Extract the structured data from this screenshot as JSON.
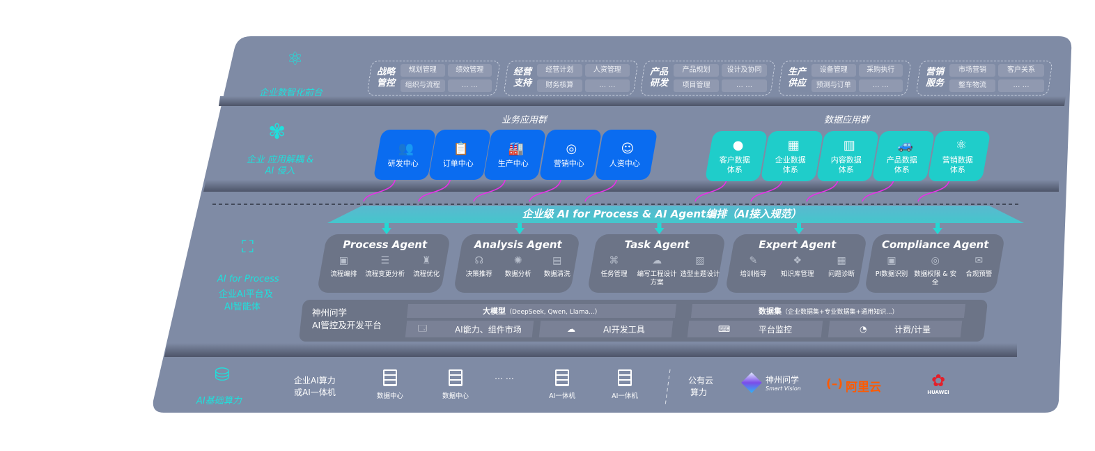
{
  "colors": {
    "panel": "#7f8ba5",
    "accent_teal": "#1fe0dc",
    "business_blue": "#0a6cf0",
    "data_teal": "#1fcdca",
    "arrow_magenta": "#e830e8"
  },
  "front": {
    "label": "企业数智化前台",
    "icon": "brain-icon",
    "groups": [
      {
        "title": "战略管控",
        "items": [
          "规划管理",
          "绩效管理",
          "组织与流程",
          "… …"
        ]
      },
      {
        "title": "经营支持",
        "items": [
          "经营计划",
          "人资管理",
          "财务核算",
          "… …"
        ]
      },
      {
        "title": "产品研发",
        "items": [
          "产品规划",
          "设计及协同",
          "项目管理",
          "… …"
        ]
      },
      {
        "title": "生产供应",
        "items": [
          "设备管理",
          "采购执行",
          "预测与订单",
          "… …"
        ]
      },
      {
        "title": "营销服务",
        "items": [
          "市场营销",
          "客户关系",
          "整车物流",
          "… …"
        ]
      }
    ]
  },
  "apps": {
    "label": "企业 应用解耦 & AI 侵入",
    "icon": "molecule-icon",
    "business": {
      "title": "业务应用群",
      "cards": [
        {
          "label": "研发中心",
          "icon": "team-icon"
        },
        {
          "label": "订单中心",
          "icon": "clipboard-icon"
        },
        {
          "label": "生产中心",
          "icon": "factory-icon"
        },
        {
          "label": "营销中心",
          "icon": "target-icon"
        },
        {
          "label": "人资中心",
          "icon": "person-icon"
        }
      ]
    },
    "data": {
      "title": "数据应用群",
      "cards": [
        {
          "label": "客户数据体系",
          "icon": "user-icon"
        },
        {
          "label": "企业数据体系",
          "icon": "building-icon"
        },
        {
          "label": "内容数据体系",
          "icon": "books-icon"
        },
        {
          "label": "产品数据体系",
          "icon": "car-icon"
        },
        {
          "label": "营销数据体系",
          "icon": "atom-icon"
        }
      ]
    }
  },
  "orchestration": {
    "banner": "企业级 AI for Process & AI Agent编排（AI接入规范）"
  },
  "ai_platform": {
    "label_en": "AI for Process",
    "label_cn1": "企业AI平台及",
    "label_cn2": "AI智能体",
    "icon": "face-scan-icon",
    "agents": [
      {
        "name": "Process Agent",
        "items": [
          "流程编排",
          "流程变更分析",
          "流程优化"
        ]
      },
      {
        "name": "Analysis Agent",
        "items": [
          "决策推荐",
          "数据分析",
          "数据清洗"
        ]
      },
      {
        "name": "Task Agent",
        "items": [
          "任务管理",
          "编写工程设计方案",
          "造型主题设计"
        ]
      },
      {
        "name": "Expert Agent",
        "items": [
          "培训指导",
          "知识库管理",
          "问题诊断"
        ]
      },
      {
        "name": "Compliance Agent",
        "items": [
          "PI数据识别",
          "数据权限 & 安全",
          "合规预警"
        ]
      }
    ],
    "platform": {
      "title1": "神州问学",
      "title2": "AI管控及开发平台",
      "model": "大模型",
      "model_note": "（DeepSeek, Qwen, Llama...）",
      "dataset": "数据集",
      "dataset_note": "（企业数据集+专业数据集+通用知识...）",
      "tools": [
        "AI能力、组件市场",
        "AI开发工具",
        "平台监控",
        "计费/计量"
      ]
    }
  },
  "compute": {
    "label": "AI基础算力",
    "icon": "database-icon",
    "enterprise1": "企业AI算力",
    "enterprise2": "或AI一体机",
    "servers": [
      "数据中心",
      "数据中心",
      "AI一体机",
      "AI一体机"
    ],
    "ellipsis": "… …",
    "public1": "公有云",
    "public2": "算力",
    "vendors": {
      "sv_cn": "神州问学",
      "sv_en": "Smart Vision",
      "aliyun": "阿里云",
      "aliyun_mark": "(–)",
      "huawei": "HUAWEI"
    }
  }
}
